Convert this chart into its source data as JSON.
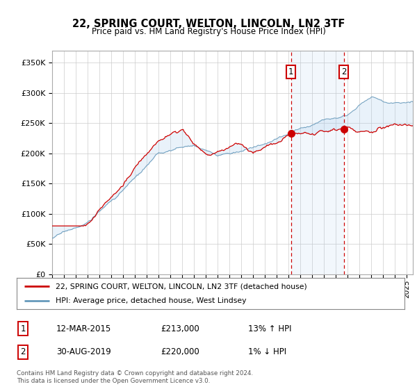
{
  "title": "22, SPRING COURT, WELTON, LINCOLN, LN2 3TF",
  "subtitle": "Price paid vs. HM Land Registry's House Price Index (HPI)",
  "ylim": [
    0,
    370000
  ],
  "xlim_start": 1995.0,
  "xlim_end": 2025.5,
  "red_line_color": "#cc0000",
  "blue_line_color": "#6699bb",
  "fill_color": "#ddeeff",
  "marker1_date": 2015.19,
  "marker2_date": 2019.66,
  "legend_label_red": "22, SPRING COURT, WELTON, LINCOLN, LN2 3TF (detached house)",
  "legend_label_blue": "HPI: Average price, detached house, West Lindsey",
  "table_entries": [
    {
      "num": "1",
      "date": "12-MAR-2015",
      "price": "£213,000",
      "pct": "13% ↑ HPI"
    },
    {
      "num": "2",
      "date": "30-AUG-2019",
      "price": "£220,000",
      "pct": "1% ↓ HPI"
    }
  ],
  "footer": "Contains HM Land Registry data © Crown copyright and database right 2024.\nThis data is licensed under the Open Government Licence v3.0.",
  "background_color": "#ffffff",
  "grid_color": "#cccccc"
}
